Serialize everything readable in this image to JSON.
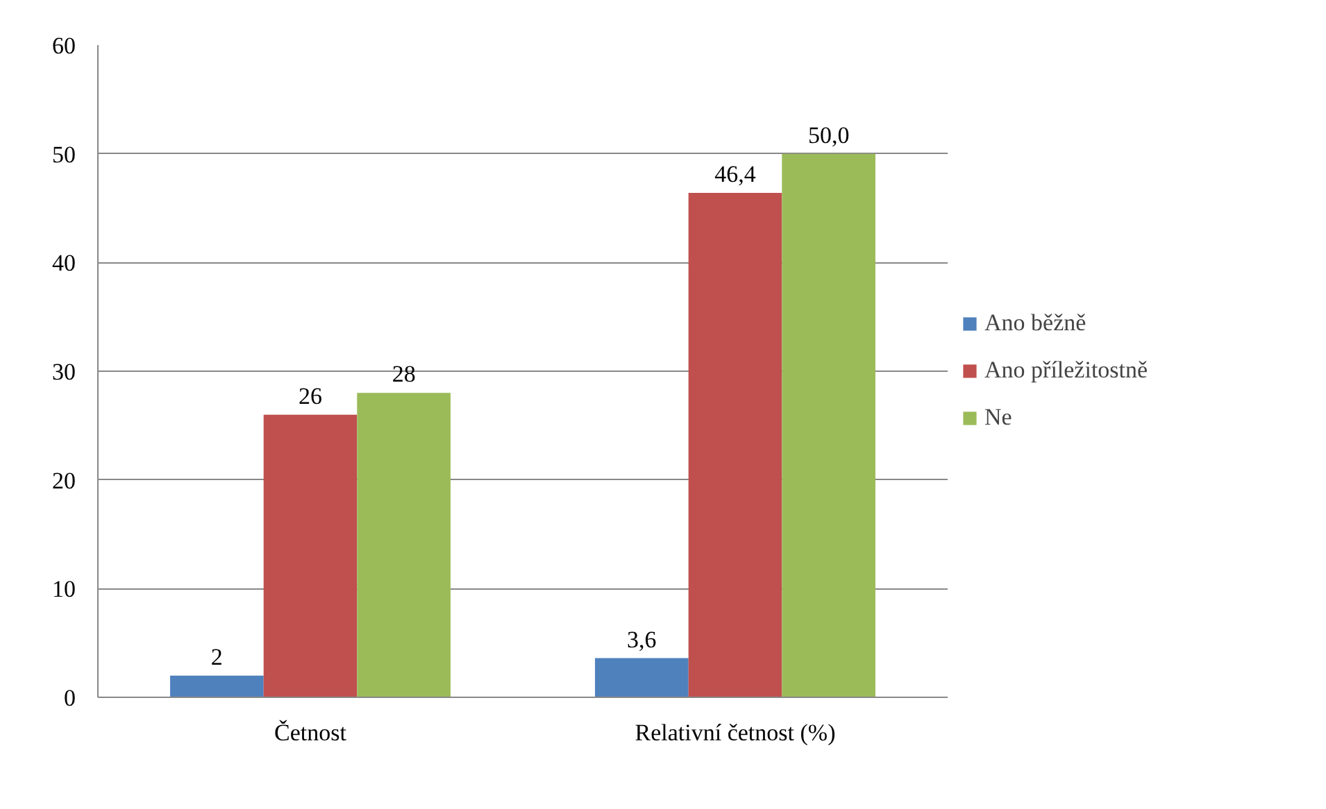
{
  "chart_data": {
    "type": "bar",
    "categories": [
      "Četnost",
      "Relativní četnost (%)"
    ],
    "series": [
      {
        "name": "Ano běžně",
        "color": "#4f81bd",
        "values": [
          2,
          3.6
        ],
        "value_labels": [
          "2",
          "3,6"
        ]
      },
      {
        "name": "Ano příležitostně",
        "color": "#c0504d",
        "values": [
          26,
          46.4
        ],
        "value_labels": [
          "26",
          "46,4"
        ]
      },
      {
        "name": "Ne",
        "color": "#9bbb59",
        "values": [
          28,
          50.0
        ],
        "value_labels": [
          "28",
          "50,0"
        ]
      }
    ],
    "ylim": [
      0,
      60
    ],
    "yticks": [
      0,
      10,
      20,
      30,
      40,
      50,
      60
    ],
    "grid": "y",
    "legend": "right"
  }
}
